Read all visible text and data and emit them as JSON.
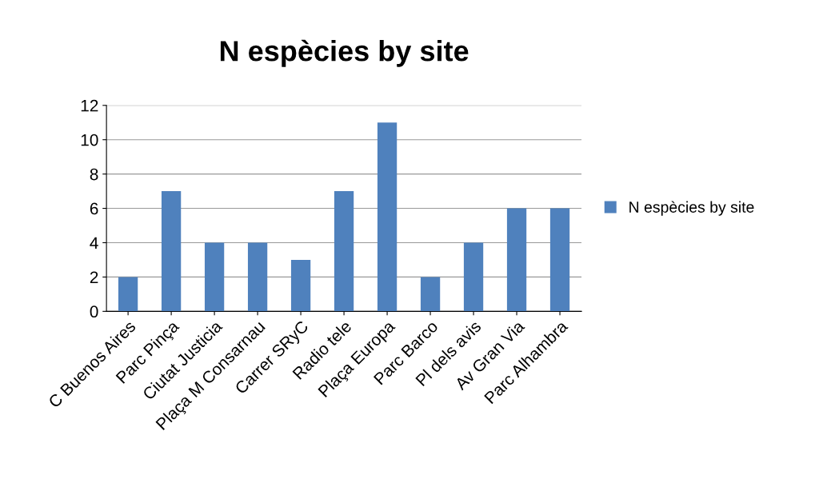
{
  "chart_data": {
    "type": "bar",
    "title": "N espècies by site",
    "categories": [
      "C Buenos Aires",
      "Parc Pinça",
      "Ciutat Justicia",
      "Plaça M Consarnau",
      "Carrer SRyC",
      "Radio tele",
      "Plaça Europa",
      "Parc Barco",
      "Pl dels avis",
      "Av Gran Via",
      "Parc Alhambra"
    ],
    "series": [
      {
        "name": "N espècies by site",
        "color": "#4f81bd",
        "values": [
          2,
          7,
          4,
          4,
          3,
          7,
          11,
          2,
          4,
          6,
          6
        ]
      }
    ],
    "ylim": [
      0,
      12
    ],
    "yticks": [
      0,
      2,
      4,
      6,
      8,
      10,
      12
    ],
    "grid": "y",
    "legend": "right"
  }
}
